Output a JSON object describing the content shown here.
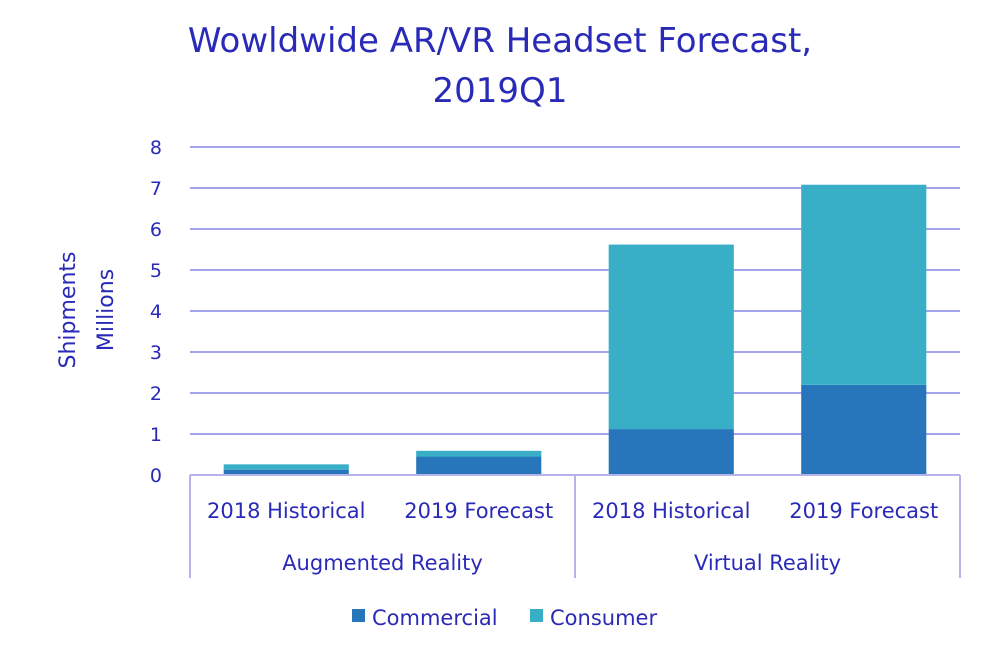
{
  "chart_data": {
    "type": "bar",
    "stacked": true,
    "title_lines": [
      "Wowldwide AR/VR Headset Forecast,",
      "2019Q1"
    ],
    "ylabel_lines": [
      "Shipments",
      "Millions"
    ],
    "ylim": [
      0,
      8
    ],
    "yticks": [
      0,
      1,
      2,
      3,
      4,
      5,
      6,
      7,
      8
    ],
    "grid": true,
    "legend_position": "bottom",
    "groups": [
      {
        "label": "Augmented Reality",
        "categories": [
          "2018 Historical",
          "2019 Forecast"
        ]
      },
      {
        "label": "Virtual Reality",
        "categories": [
          "2018 Historical",
          "2019 Forecast"
        ]
      }
    ],
    "series": [
      {
        "name": "Commercial",
        "color": "#2776bc",
        "values": [
          0.13,
          0.45,
          1.12,
          2.2
        ]
      },
      {
        "name": "Consumer",
        "color": "#38afc6",
        "values": [
          0.13,
          0.14,
          4.5,
          4.88
        ]
      }
    ]
  }
}
